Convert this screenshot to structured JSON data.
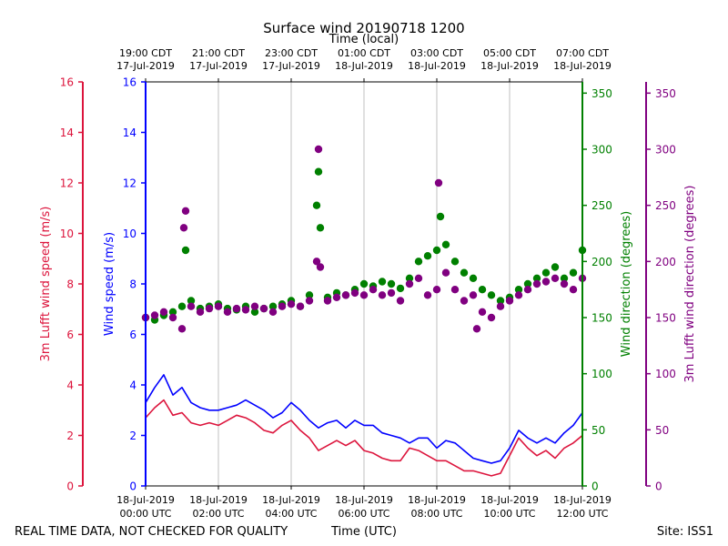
{
  "chart_data": {
    "type": "scatter",
    "title": "Surface wind 20190718 1200",
    "top_axis_label": "Time (local)",
    "bottom_axis_label": "Time (UTC)",
    "footer_left": "REAL TIME DATA, NOT CHECKED FOR QUALITY",
    "footer_right": "Site: ISS1",
    "grid": "vertical",
    "x_range_hours_utc": [
      0,
      12
    ],
    "utc_ticks": [
      {
        "hour": 0,
        "line1": "18-Jul-2019",
        "line2": "00:00 UTC"
      },
      {
        "hour": 2,
        "line1": "18-Jul-2019",
        "line2": "02:00 UTC"
      },
      {
        "hour": 4,
        "line1": "18-Jul-2019",
        "line2": "04:00 UTC"
      },
      {
        "hour": 6,
        "line1": "18-Jul-2019",
        "line2": "06:00 UTC"
      },
      {
        "hour": 8,
        "line1": "18-Jul-2019",
        "line2": "08:00 UTC"
      },
      {
        "hour": 10,
        "line1": "18-Jul-2019",
        "line2": "10:00 UTC"
      },
      {
        "hour": 12,
        "line1": "18-Jul-2019",
        "line2": "12:00 UTC"
      }
    ],
    "local_ticks": [
      {
        "hour": 0,
        "line1": "19:00 CDT",
        "line2": "17-Jul-2019"
      },
      {
        "hour": 2,
        "line1": "21:00 CDT",
        "line2": "17-Jul-2019"
      },
      {
        "hour": 4,
        "line1": "23:00 CDT",
        "line2": "17-Jul-2019"
      },
      {
        "hour": 6,
        "line1": "01:00 CDT",
        "line2": "18-Jul-2019"
      },
      {
        "hour": 8,
        "line1": "03:00 CDT",
        "line2": "18-Jul-2019"
      },
      {
        "hour": 10,
        "line1": "05:00 CDT",
        "line2": "18-Jul-2019"
      },
      {
        "hour": 12,
        "line1": "07:00 CDT",
        "line2": "18-Jul-2019"
      }
    ],
    "axes": {
      "lufft_speed": {
        "label": "3m Lufft wind speed (m/s)",
        "color": "#dc143c",
        "ylim": [
          0,
          16
        ],
        "ticks": [
          "0",
          "2",
          "4",
          "6",
          "8",
          "10",
          "12",
          "14",
          "16"
        ]
      },
      "wind_speed": {
        "label": "Wind speed (m/s)",
        "color": "#0000ff",
        "ylim": [
          0,
          16
        ],
        "ticks": [
          "0",
          "2",
          "4",
          "6",
          "8",
          "10",
          "12",
          "14",
          "16"
        ]
      },
      "wind_dir": {
        "label": "Wind direction (degrees)",
        "color": "#008000",
        "ylim": [
          0,
          360
        ],
        "ticks": [
          "0",
          "50",
          "100",
          "150",
          "200",
          "250",
          "300",
          "350"
        ]
      },
      "lufft_dir": {
        "label": "3m Lufft wind direction (degrees)",
        "color": "#800080",
        "ylim": [
          0,
          360
        ],
        "ticks": [
          "0",
          "50",
          "100",
          "150",
          "200",
          "250",
          "300",
          "350"
        ]
      }
    },
    "series": [
      {
        "name": "Wind speed (m/s)",
        "kind": "line",
        "axis": "wind_speed",
        "color": "#0000ff",
        "x_hours": [
          0,
          0.25,
          0.5,
          0.75,
          1,
          1.25,
          1.5,
          1.75,
          2,
          2.25,
          2.5,
          2.75,
          3,
          3.25,
          3.5,
          3.75,
          4,
          4.25,
          4.5,
          4.75,
          5,
          5.25,
          5.5,
          5.75,
          6,
          6.25,
          6.5,
          6.75,
          7,
          7.25,
          7.5,
          7.75,
          8,
          8.25,
          8.5,
          8.75,
          9,
          9.25,
          9.5,
          9.75,
          10,
          10.25,
          10.5,
          10.75,
          11,
          11.25,
          11.5,
          11.75,
          12
        ],
        "values": [
          3.3,
          3.9,
          4.4,
          3.6,
          3.9,
          3.3,
          3.1,
          3.0,
          3.0,
          3.1,
          3.2,
          3.4,
          3.2,
          3.0,
          2.7,
          2.9,
          3.3,
          3.0,
          2.6,
          2.3,
          2.5,
          2.6,
          2.3,
          2.6,
          2.4,
          2.4,
          2.1,
          2.0,
          1.9,
          1.7,
          1.9,
          1.9,
          1.5,
          1.8,
          1.7,
          1.4,
          1.1,
          1.0,
          0.9,
          1.0,
          1.5,
          2.2,
          1.9,
          1.7,
          1.9,
          1.7,
          2.1,
          2.4,
          2.9
        ]
      },
      {
        "name": "3m Lufft wind speed (m/s)",
        "kind": "line",
        "axis": "lufft_speed",
        "color": "#dc143c",
        "x_hours": [
          0,
          0.25,
          0.5,
          0.75,
          1,
          1.25,
          1.5,
          1.75,
          2,
          2.25,
          2.5,
          2.75,
          3,
          3.25,
          3.5,
          3.75,
          4,
          4.25,
          4.5,
          4.75,
          5,
          5.25,
          5.5,
          5.75,
          6,
          6.25,
          6.5,
          6.75,
          7,
          7.25,
          7.5,
          7.75,
          8,
          8.25,
          8.5,
          8.75,
          9,
          9.25,
          9.5,
          9.75,
          10,
          10.25,
          10.5,
          10.75,
          11,
          11.25,
          11.5,
          11.75,
          12
        ],
        "values": [
          2.7,
          3.1,
          3.4,
          2.8,
          2.9,
          2.5,
          2.4,
          2.5,
          2.4,
          2.6,
          2.8,
          2.7,
          2.5,
          2.2,
          2.1,
          2.4,
          2.6,
          2.2,
          1.9,
          1.4,
          1.6,
          1.8,
          1.6,
          1.8,
          1.4,
          1.3,
          1.1,
          1.0,
          1.0,
          1.5,
          1.4,
          1.2,
          1.0,
          1.0,
          0.8,
          0.6,
          0.6,
          0.5,
          0.4,
          0.5,
          1.2,
          1.9,
          1.5,
          1.2,
          1.4,
          1.1,
          1.5,
          1.7,
          2.0
        ]
      },
      {
        "name": "Wind direction (degrees)",
        "kind": "scatter",
        "axis": "wind_dir",
        "color": "#008000",
        "x_hours": [
          0,
          0.25,
          0.5,
          0.75,
          1,
          1.1,
          1.25,
          1.5,
          1.75,
          2,
          2.25,
          2.5,
          2.75,
          3,
          3.25,
          3.5,
          3.75,
          4,
          4.25,
          4.5,
          4.7,
          4.75,
          4.8,
          5,
          5.25,
          5.5,
          5.75,
          6,
          6.25,
          6.5,
          6.75,
          7,
          7.25,
          7.5,
          7.75,
          8,
          8.1,
          8.25,
          8.5,
          8.75,
          9,
          9.25,
          9.5,
          9.75,
          10,
          10.25,
          10.5,
          10.75,
          11,
          11.25,
          11.5,
          11.75,
          12
        ],
        "values": [
          150,
          148,
          152,
          155,
          160,
          210,
          165,
          158,
          160,
          162,
          158,
          157,
          160,
          155,
          158,
          160,
          162,
          165,
          160,
          170,
          250,
          280,
          230,
          168,
          172,
          170,
          175,
          180,
          178,
          182,
          180,
          176,
          185,
          200,
          205,
          210,
          240,
          215,
          200,
          190,
          185,
          175,
          170,
          165,
          168,
          175,
          180,
          185,
          190,
          195,
          185,
          190,
          210
        ]
      },
      {
        "name": "3m Lufft wind direction (degrees)",
        "kind": "scatter",
        "axis": "lufft_dir",
        "color": "#800080",
        "x_hours": [
          0,
          0.25,
          0.5,
          0.75,
          1,
          1.05,
          1.1,
          1.25,
          1.5,
          1.75,
          2,
          2.25,
          2.5,
          2.75,
          3,
          3.25,
          3.5,
          3.75,
          4,
          4.25,
          4.5,
          4.7,
          4.75,
          4.8,
          5,
          5.25,
          5.5,
          5.75,
          6,
          6.25,
          6.5,
          6.75,
          7,
          7.25,
          7.5,
          7.75,
          8,
          8.05,
          8.25,
          8.5,
          8.75,
          9,
          9.1,
          9.25,
          9.5,
          9.75,
          10,
          10.25,
          10.5,
          10.75,
          11,
          11.25,
          11.5,
          11.75,
          12
        ],
        "values": [
          150,
          152,
          155,
          150,
          140,
          230,
          245,
          160,
          155,
          158,
          160,
          155,
          158,
          157,
          160,
          158,
          155,
          160,
          162,
          160,
          165,
          200,
          300,
          195,
          165,
          168,
          170,
          172,
          170,
          175,
          170,
          172,
          165,
          180,
          185,
          170,
          175,
          270,
          190,
          175,
          165,
          170,
          140,
          155,
          150,
          160,
          165,
          170,
          175,
          180,
          182,
          185,
          180,
          175,
          185
        ]
      }
    ]
  }
}
